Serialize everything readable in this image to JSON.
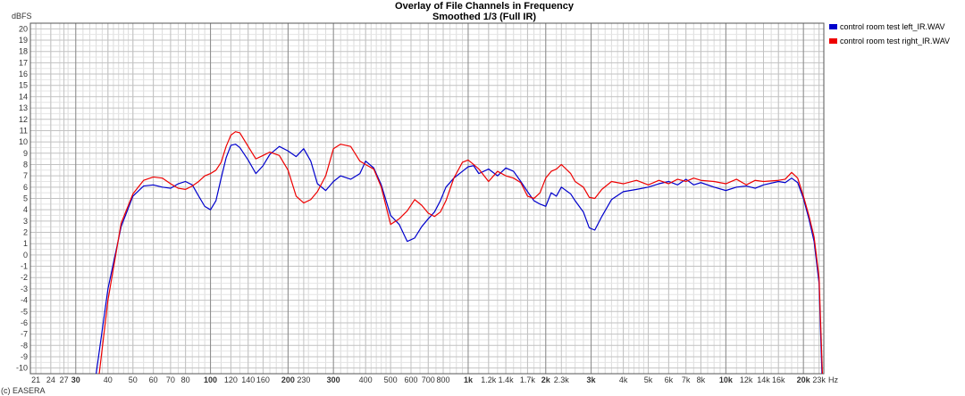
{
  "chart_data": {
    "type": "line",
    "title": "Overlay of File Channels in Frequency",
    "subtitle": "Smoothed 1/3 (Full IR)",
    "ylabel": "dBFS",
    "xlabel": "Hz",
    "x_scale": "log",
    "xlim": [
      20,
      24000
    ],
    "ylim": [
      -10.5,
      20.5
    ],
    "grid": true,
    "legend_position": "top-right",
    "y_ticks": [
      20,
      19,
      18,
      17,
      16,
      15,
      14,
      13,
      12,
      11,
      10,
      9,
      8,
      7,
      6,
      5,
      4,
      3,
      2,
      1,
      0,
      -1,
      -2,
      -3,
      -4,
      -5,
      -6,
      -7,
      -8,
      -9,
      -10
    ],
    "x_ticks": [
      {
        "v": 21,
        "label": "21",
        "major": false
      },
      {
        "v": 24,
        "label": "24",
        "major": false
      },
      {
        "v": 27,
        "label": "27",
        "major": false
      },
      {
        "v": 30,
        "label": "30",
        "major": true
      },
      {
        "v": 40,
        "label": "40",
        "major": false
      },
      {
        "v": 50,
        "label": "50",
        "major": false
      },
      {
        "v": 60,
        "label": "60",
        "major": false
      },
      {
        "v": 70,
        "label": "70",
        "major": false
      },
      {
        "v": 80,
        "label": "80",
        "major": false
      },
      {
        "v": 100,
        "label": "100",
        "major": true
      },
      {
        "v": 120,
        "label": "120",
        "major": false
      },
      {
        "v": 140,
        "label": "140",
        "major": false
      },
      {
        "v": 160,
        "label": "160",
        "major": false
      },
      {
        "v": 200,
        "label": "200",
        "major": true
      },
      {
        "v": 230,
        "label": "230",
        "major": false
      },
      {
        "v": 300,
        "label": "300",
        "major": true
      },
      {
        "v": 400,
        "label": "400",
        "major": false
      },
      {
        "v": 500,
        "label": "500",
        "major": false
      },
      {
        "v": 600,
        "label": "600",
        "major": false
      },
      {
        "v": 700,
        "label": "700",
        "major": false
      },
      {
        "v": 800,
        "label": "800",
        "major": false
      },
      {
        "v": 1000,
        "label": "1k",
        "major": true
      },
      {
        "v": 1200,
        "label": "1.2k",
        "major": false
      },
      {
        "v": 1400,
        "label": "1.4k",
        "major": false
      },
      {
        "v": 1700,
        "label": "1.7k",
        "major": false
      },
      {
        "v": 2000,
        "label": "2k",
        "major": true
      },
      {
        "v": 2300,
        "label": "2.3k",
        "major": false
      },
      {
        "v": 3000,
        "label": "3k",
        "major": true
      },
      {
        "v": 4000,
        "label": "4k",
        "major": false
      },
      {
        "v": 5000,
        "label": "5k",
        "major": false
      },
      {
        "v": 6000,
        "label": "6k",
        "major": false
      },
      {
        "v": 7000,
        "label": "7k",
        "major": false
      },
      {
        "v": 8000,
        "label": "8k",
        "major": false
      },
      {
        "v": 10000,
        "label": "10k",
        "major": true
      },
      {
        "v": 12000,
        "label": "12k",
        "major": false
      },
      {
        "v": 14000,
        "label": "14k",
        "major": false
      },
      {
        "v": 16000,
        "label": "16k",
        "major": false
      },
      {
        "v": 20000,
        "label": "20k",
        "major": true
      },
      {
        "v": 23000,
        "label": "23k",
        "major": false
      }
    ],
    "series": [
      {
        "name": "control room test left_IR.WAV",
        "color": "#0000cc",
        "points": [
          [
            36,
            -10.5
          ],
          [
            40,
            -3
          ],
          [
            45,
            2.5
          ],
          [
            50,
            5.2
          ],
          [
            55,
            6.1
          ],
          [
            60,
            6.2
          ],
          [
            65,
            6.0
          ],
          [
            70,
            5.9
          ],
          [
            75,
            6.3
          ],
          [
            80,
            6.5
          ],
          [
            85,
            6.2
          ],
          [
            90,
            5.2
          ],
          [
            95,
            4.3
          ],
          [
            100,
            4.0
          ],
          [
            105,
            4.8
          ],
          [
            110,
            6.8
          ],
          [
            115,
            8.6
          ],
          [
            120,
            9.7
          ],
          [
            125,
            9.8
          ],
          [
            130,
            9.5
          ],
          [
            140,
            8.4
          ],
          [
            150,
            7.2
          ],
          [
            160,
            7.9
          ],
          [
            170,
            8.9
          ],
          [
            185,
            9.6
          ],
          [
            200,
            9.2
          ],
          [
            215,
            8.7
          ],
          [
            230,
            9.4
          ],
          [
            245,
            8.3
          ],
          [
            260,
            6.3
          ],
          [
            280,
            5.7
          ],
          [
            300,
            6.5
          ],
          [
            320,
            7.0
          ],
          [
            350,
            6.7
          ],
          [
            380,
            7.2
          ],
          [
            400,
            8.3
          ],
          [
            430,
            7.7
          ],
          [
            460,
            6.2
          ],
          [
            500,
            3.5
          ],
          [
            540,
            2.7
          ],
          [
            580,
            1.2
          ],
          [
            620,
            1.5
          ],
          [
            660,
            2.5
          ],
          [
            700,
            3.2
          ],
          [
            740,
            3.8
          ],
          [
            780,
            4.8
          ],
          [
            820,
            6.0
          ],
          [
            880,
            6.8
          ],
          [
            950,
            7.4
          ],
          [
            1000,
            7.8
          ],
          [
            1050,
            7.9
          ],
          [
            1100,
            7.2
          ],
          [
            1200,
            7.6
          ],
          [
            1300,
            7.0
          ],
          [
            1400,
            7.7
          ],
          [
            1500,
            7.4
          ],
          [
            1600,
            6.5
          ],
          [
            1700,
            5.6
          ],
          [
            1800,
            4.8
          ],
          [
            1900,
            4.5
          ],
          [
            2000,
            4.3
          ],
          [
            2100,
            5.5
          ],
          [
            2200,
            5.2
          ],
          [
            2300,
            6.0
          ],
          [
            2500,
            5.4
          ],
          [
            2600,
            4.8
          ],
          [
            2800,
            3.8
          ],
          [
            2950,
            2.4
          ],
          [
            3100,
            2.2
          ],
          [
            3300,
            3.4
          ],
          [
            3600,
            4.9
          ],
          [
            4000,
            5.6
          ],
          [
            4500,
            5.8
          ],
          [
            5000,
            6.0
          ],
          [
            5500,
            6.3
          ],
          [
            6000,
            6.5
          ],
          [
            6500,
            6.2
          ],
          [
            7000,
            6.7
          ],
          [
            7500,
            6.2
          ],
          [
            8000,
            6.4
          ],
          [
            9000,
            6.0
          ],
          [
            10000,
            5.7
          ],
          [
            11000,
            6.0
          ],
          [
            12000,
            6.1
          ],
          [
            13000,
            5.9
          ],
          [
            14000,
            6.2
          ],
          [
            16000,
            6.5
          ],
          [
            17000,
            6.4
          ],
          [
            18000,
            6.8
          ],
          [
            19000,
            6.4
          ],
          [
            20000,
            5.0
          ],
          [
            21000,
            3.2
          ],
          [
            22000,
            1.2
          ],
          [
            23000,
            -2.5
          ],
          [
            23600,
            -10.5
          ]
        ]
      },
      {
        "name": "control room test right_IR.WAV",
        "color": "#ee0000",
        "points": [
          [
            37,
            -10.5
          ],
          [
            40,
            -4
          ],
          [
            45,
            2.8
          ],
          [
            50,
            5.4
          ],
          [
            55,
            6.6
          ],
          [
            60,
            6.9
          ],
          [
            65,
            6.8
          ],
          [
            70,
            6.3
          ],
          [
            75,
            5.9
          ],
          [
            80,
            5.8
          ],
          [
            85,
            6.1
          ],
          [
            90,
            6.5
          ],
          [
            95,
            7.0
          ],
          [
            100,
            7.2
          ],
          [
            105,
            7.5
          ],
          [
            110,
            8.2
          ],
          [
            115,
            9.6
          ],
          [
            120,
            10.6
          ],
          [
            125,
            10.9
          ],
          [
            130,
            10.8
          ],
          [
            140,
            9.6
          ],
          [
            150,
            8.5
          ],
          [
            160,
            8.8
          ],
          [
            170,
            9.1
          ],
          [
            185,
            8.8
          ],
          [
            200,
            7.5
          ],
          [
            215,
            5.2
          ],
          [
            230,
            4.6
          ],
          [
            245,
            4.9
          ],
          [
            260,
            5.6
          ],
          [
            280,
            7.0
          ],
          [
            300,
            9.4
          ],
          [
            320,
            9.8
          ],
          [
            350,
            9.6
          ],
          [
            380,
            8.3
          ],
          [
            400,
            8.0
          ],
          [
            430,
            7.6
          ],
          [
            460,
            6.0
          ],
          [
            500,
            2.7
          ],
          [
            540,
            3.2
          ],
          [
            580,
            3.9
          ],
          [
            620,
            4.9
          ],
          [
            660,
            4.4
          ],
          [
            700,
            3.7
          ],
          [
            740,
            3.4
          ],
          [
            780,
            3.8
          ],
          [
            820,
            4.8
          ],
          [
            880,
            6.8
          ],
          [
            950,
            8.2
          ],
          [
            1000,
            8.4
          ],
          [
            1050,
            8.0
          ],
          [
            1100,
            7.6
          ],
          [
            1200,
            6.5
          ],
          [
            1300,
            7.4
          ],
          [
            1400,
            7.0
          ],
          [
            1500,
            6.8
          ],
          [
            1600,
            6.4
          ],
          [
            1700,
            5.2
          ],
          [
            1800,
            5.0
          ],
          [
            1900,
            5.5
          ],
          [
            2000,
            6.8
          ],
          [
            2100,
            7.4
          ],
          [
            2200,
            7.6
          ],
          [
            2300,
            8.0
          ],
          [
            2500,
            7.2
          ],
          [
            2600,
            6.5
          ],
          [
            2800,
            6.0
          ],
          [
            2950,
            5.1
          ],
          [
            3100,
            5.0
          ],
          [
            3300,
            5.8
          ],
          [
            3600,
            6.5
          ],
          [
            4000,
            6.3
          ],
          [
            4500,
            6.6
          ],
          [
            5000,
            6.2
          ],
          [
            5500,
            6.6
          ],
          [
            6000,
            6.3
          ],
          [
            6500,
            6.7
          ],
          [
            7000,
            6.5
          ],
          [
            7500,
            6.8
          ],
          [
            8000,
            6.6
          ],
          [
            9000,
            6.5
          ],
          [
            10000,
            6.3
          ],
          [
            11000,
            6.7
          ],
          [
            12000,
            6.2
          ],
          [
            13000,
            6.6
          ],
          [
            14000,
            6.5
          ],
          [
            16000,
            6.6
          ],
          [
            17000,
            6.7
          ],
          [
            18000,
            7.3
          ],
          [
            19000,
            6.8
          ],
          [
            20000,
            5.2
          ],
          [
            21000,
            3.5
          ],
          [
            22000,
            1.6
          ],
          [
            23000,
            -2.0
          ],
          [
            23700,
            -10.5
          ]
        ]
      }
    ]
  },
  "footer": {
    "credit": "(c) EASERA"
  }
}
